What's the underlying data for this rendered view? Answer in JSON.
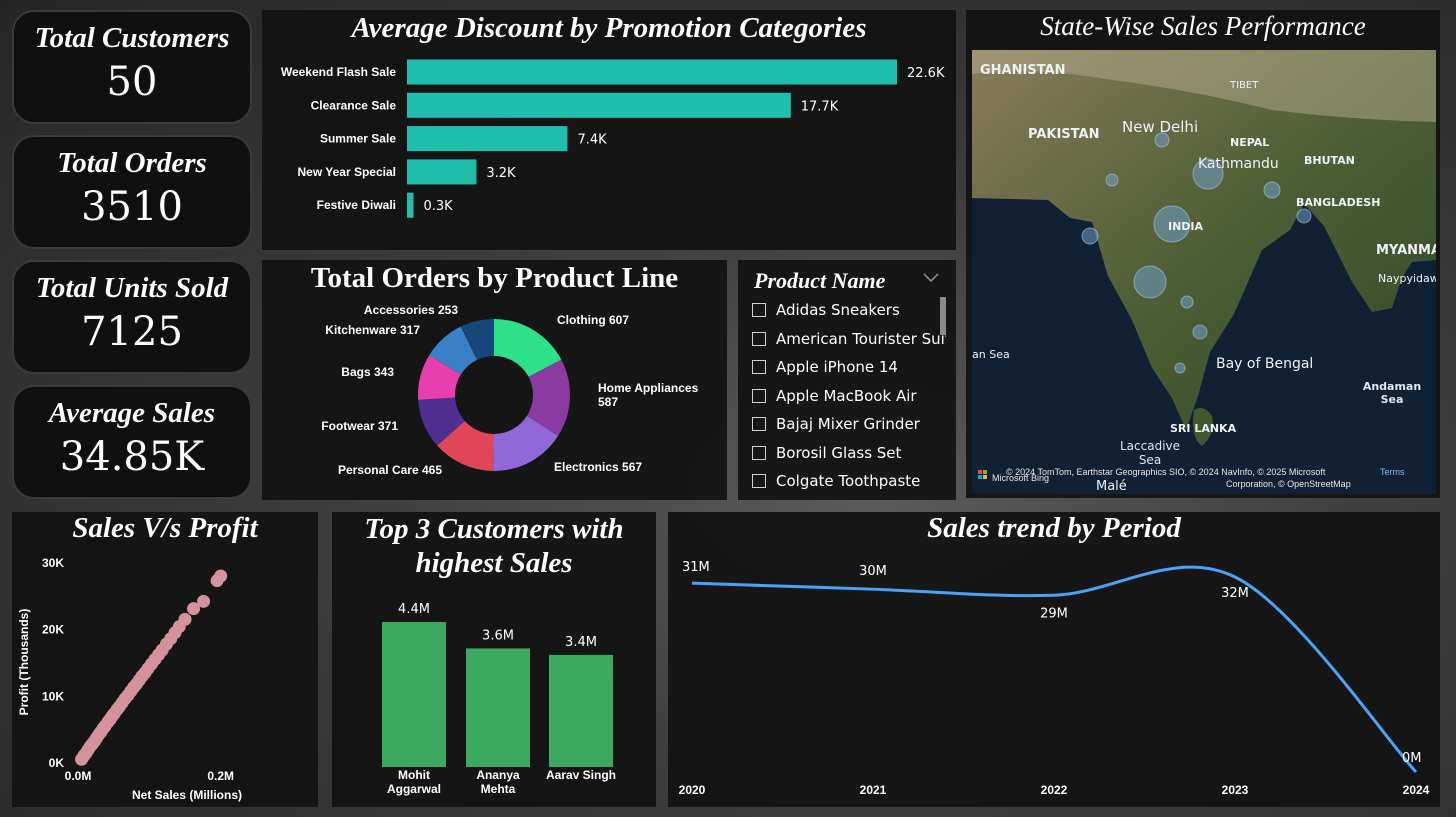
{
  "kpis": [
    {
      "title": "Total Customers",
      "value": "50"
    },
    {
      "title": "Total Orders",
      "value": "3510"
    },
    {
      "title": "Total Units Sold",
      "value": "7125"
    },
    {
      "title": "Average Sales",
      "value": "34.85K"
    }
  ],
  "colors": {
    "bar": "#20bfad",
    "customers_bar": "#3ca860",
    "trend": "#4aa3f5",
    "scatter": "#d4939c"
  },
  "discount_chart": {
    "title": "Average Discount by Promotion Categories",
    "chart_data": {
      "type": "bar",
      "orientation": "horizontal",
      "categories": [
        "Weekend Flash Sale",
        "Clearance Sale",
        "Summer Sale",
        "New Year Special",
        "Festive Diwali"
      ],
      "values": [
        22.6,
        17.7,
        7.4,
        3.2,
        0.3
      ],
      "labels": [
        "22.6K",
        "17.7K",
        "7.4K",
        "3.2K",
        "0.3K"
      ],
      "units": "K",
      "xlim": [
        0,
        22.6
      ]
    }
  },
  "product_line_chart": {
    "title": "Total Orders by Product Line",
    "chart_data": {
      "type": "pie",
      "donut": true,
      "slices": [
        {
          "label": "Clothing 607",
          "value": 607,
          "color": "#2fe08a"
        },
        {
          "label": "Home Appliances 587",
          "value": 587,
          "color": "#8a3aa0"
        },
        {
          "label": "Electronics 567",
          "value": 567,
          "color": "#9068d8"
        },
        {
          "label": "Personal Care 465",
          "value": 465,
          "color": "#e04558"
        },
        {
          "label": "Footwear 371",
          "value": 371,
          "color": "#4e2e90"
        },
        {
          "label": "Bags 343",
          "value": 343,
          "color": "#e83fae"
        },
        {
          "label": "Kitchenware 317",
          "value": 317,
          "color": "#3a80c6"
        },
        {
          "label": "Accessories 253",
          "value": 253,
          "color": "#16477a"
        }
      ]
    }
  },
  "slicer": {
    "title": "Product Name",
    "items": [
      "Adidas Sneakers",
      "American Tourister Suit...",
      "Apple iPhone 14",
      "Apple MacBook Air",
      "Bajaj Mixer Grinder",
      "Borosil Glass Set",
      "Colgate Toothpaste"
    ]
  },
  "map": {
    "title": "State-Wise Sales Performance",
    "place_labels": [
      "GHANISTAN",
      "TIBET",
      "PAKISTAN",
      "New Delhi",
      "NEPAL",
      "Kathmandu",
      "BHUTAN",
      "BANGLADESH",
      "INDIA",
      "MYANMA",
      "Naypyidaw",
      "an Sea",
      "Bay of Bengal",
      "Andaman Sea",
      "SRI LANKA",
      "Laccadive Sea",
      "Malé"
    ],
    "attribution": "© 2024 TomTom, Earthstar Geographics SIO, © 2024 NavInfo, © 2025 Microsoft Corporation, © OpenStreetMap",
    "terms": "Terms",
    "brand": "Microsoft Bing"
  },
  "scatter_chart": {
    "title": "Sales V/s Profit",
    "chart_data": {
      "type": "scatter",
      "xlabel": "Net Sales (Millions)",
      "ylabel": "Profit (Thousands)",
      "xticks": [
        "0.0M",
        "0.2M"
      ],
      "yticks": [
        "0K",
        "10K",
        "20K",
        "30K"
      ],
      "xlim": [
        0,
        0.3
      ],
      "ylim": [
        0,
        30
      ],
      "points": [
        [
          0.005,
          0.4
        ],
        [
          0.008,
          0.9
        ],
        [
          0.011,
          1.3
        ],
        [
          0.014,
          1.8
        ],
        [
          0.017,
          2.3
        ],
        [
          0.02,
          2.7
        ],
        [
          0.023,
          3.1
        ],
        [
          0.026,
          3.6
        ],
        [
          0.029,
          4.1
        ],
        [
          0.032,
          4.5
        ],
        [
          0.035,
          5
        ],
        [
          0.038,
          5.4
        ],
        [
          0.042,
          6
        ],
        [
          0.045,
          6.4
        ],
        [
          0.048,
          6.9
        ],
        [
          0.051,
          7.3
        ],
        [
          0.055,
          7.9
        ],
        [
          0.058,
          8.3
        ],
        [
          0.062,
          8.9
        ],
        [
          0.066,
          9.5
        ],
        [
          0.07,
          10
        ],
        [
          0.074,
          10.6
        ],
        [
          0.078,
          11.2
        ],
        [
          0.082,
          11.7
        ],
        [
          0.086,
          12.3
        ],
        [
          0.09,
          12.9
        ],
        [
          0.094,
          13.4
        ],
        [
          0.098,
          14
        ],
        [
          0.103,
          14.7
        ],
        [
          0.108,
          15.4
        ],
        [
          0.113,
          16.1
        ],
        [
          0.118,
          16.8
        ],
        [
          0.124,
          17.7
        ],
        [
          0.13,
          18.5
        ],
        [
          0.136,
          19.4
        ],
        [
          0.142,
          20.3
        ],
        [
          0.15,
          21.4
        ],
        [
          0.162,
          23
        ],
        [
          0.176,
          24.1
        ],
        [
          0.195,
          27.2
        ],
        [
          0.2,
          27.9
        ]
      ]
    }
  },
  "customers_chart": {
    "title": "Top 3 Customers with highest Sales",
    "chart_data": {
      "type": "bar",
      "categories": [
        "Mohit Aggarwal",
        "Ananya Mehta",
        "Aarav Singh"
      ],
      "values": [
        4.4,
        3.6,
        3.4
      ],
      "labels": [
        "4.4M",
        "3.6M",
        "3.4M"
      ],
      "units": "M",
      "ylim": [
        0,
        4.4
      ]
    }
  },
  "trend_chart": {
    "title": "Sales trend by Period",
    "chart_data": {
      "type": "line",
      "x": [
        "2020",
        "2021",
        "2022",
        "2023",
        "2024"
      ],
      "values": [
        31,
        30,
        29,
        32,
        0
      ],
      "labels": [
        "31M",
        "30M",
        "29M",
        "32M",
        "0M"
      ],
      "units": "M"
    }
  }
}
